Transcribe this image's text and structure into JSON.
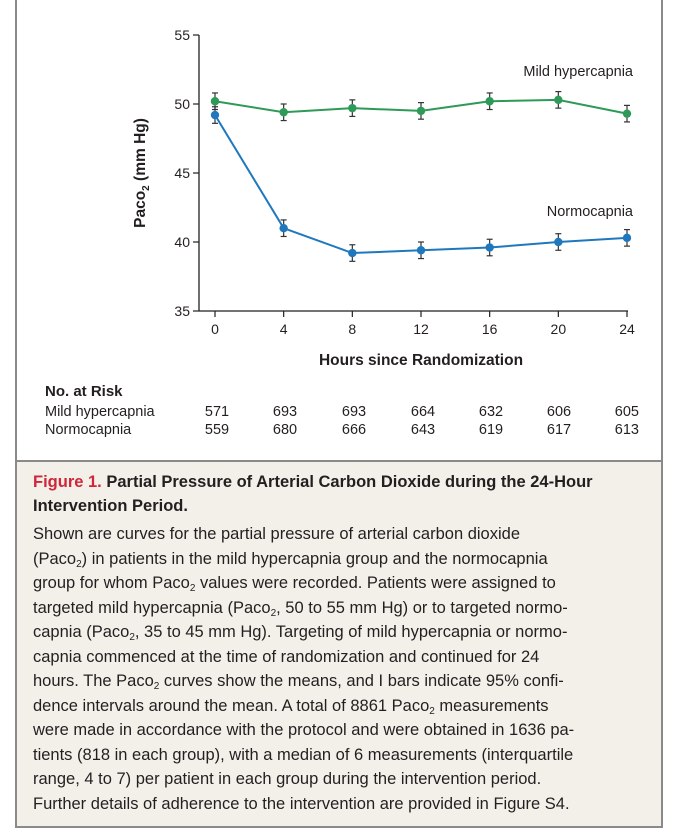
{
  "chart_data": {
    "type": "line",
    "x": [
      0,
      4,
      8,
      12,
      16,
      20,
      24
    ],
    "xlabel": "Hours since Randomization",
    "ylabel": "Paco",
    "ylabel_sub": "2",
    "ylabel_suffix": " (mm Hg)",
    "xlim": [
      0,
      24
    ],
    "ylim": [
      35,
      55
    ],
    "xticks": [
      "0",
      "4",
      "8",
      "12",
      "16",
      "20",
      "24"
    ],
    "yticks": [
      "35",
      "40",
      "45",
      "50",
      "55"
    ],
    "grid": false,
    "series": [
      {
        "name": "Mild hypercapnia",
        "color": "#2e9a57",
        "values": [
          50.2,
          49.4,
          49.7,
          49.5,
          50.2,
          50.3,
          49.3
        ],
        "ci_halfwidth": [
          0.6,
          0.6,
          0.6,
          0.6,
          0.6,
          0.6,
          0.6
        ]
      },
      {
        "name": "Normocapnia",
        "color": "#1f78bd",
        "values": [
          49.2,
          41.0,
          39.2,
          39.4,
          39.6,
          40.0,
          40.3
        ],
        "ci_halfwidth": [
          0.6,
          0.6,
          0.6,
          0.6,
          0.6,
          0.6,
          0.6
        ]
      }
    ]
  },
  "risk": {
    "title": "No. at Risk",
    "rows": [
      {
        "label": "Mild hypercapnia",
        "values": [
          "571",
          "693",
          "693",
          "664",
          "632",
          "606",
          "605"
        ]
      },
      {
        "label": "Normocapnia",
        "values": [
          "559",
          "680",
          "666",
          "643",
          "619",
          "617",
          "613"
        ]
      }
    ]
  },
  "caption": {
    "figure_label": "Figure 1.",
    "title": " Partial Pressure of Arterial Carbon Dioxide during the 24-Hour",
    "title_line2": "Intervention Period.",
    "lines": [
      [
        {
          "t": "Shown are curves for the partial pressure of arterial carbon dioxide"
        }
      ],
      [
        {
          "t": "(Paco"
        },
        {
          "t": "2",
          "sub": true
        },
        {
          "t": ") in patients in the mild hypercapnia group and the normocapnia"
        }
      ],
      [
        {
          "t": "group for whom Paco"
        },
        {
          "t": "2",
          "sub": true
        },
        {
          "t": " values were recorded. Patients were assigned to"
        }
      ],
      [
        {
          "t": "targeted mild hypercapnia (Paco"
        },
        {
          "t": "2",
          "sub": true
        },
        {
          "t": ", 50 to 55 mm Hg) or to targeted normo-"
        }
      ],
      [
        {
          "t": "capnia (Paco"
        },
        {
          "t": "2",
          "sub": true
        },
        {
          "t": ", 35 to 45 mm Hg). Targeting of mild hypercapnia or normo-"
        }
      ],
      [
        {
          "t": "capnia commenced at the time of randomization and continued for 24"
        }
      ],
      [
        {
          "t": "hours. The Paco"
        },
        {
          "t": "2",
          "sub": true
        },
        {
          "t": " curves show the means, and I bars indicate 95% confi-"
        }
      ],
      [
        {
          "t": "dence intervals around the mean. A total of 8861 Paco"
        },
        {
          "t": "2",
          "sub": true
        },
        {
          "t": " measurements"
        }
      ],
      [
        {
          "t": "were made in accordance with the protocol and were obtained in 1636 pa-"
        }
      ],
      [
        {
          "t": "tients (818 in each group), with a median of 6 measurements (interquartile"
        }
      ],
      [
        {
          "t": "range, 4 to 7) per patient in each group during the intervention period."
        }
      ],
      [
        {
          "t": "Further details of adherence to the intervention are provided in Figure S4."
        }
      ]
    ]
  }
}
